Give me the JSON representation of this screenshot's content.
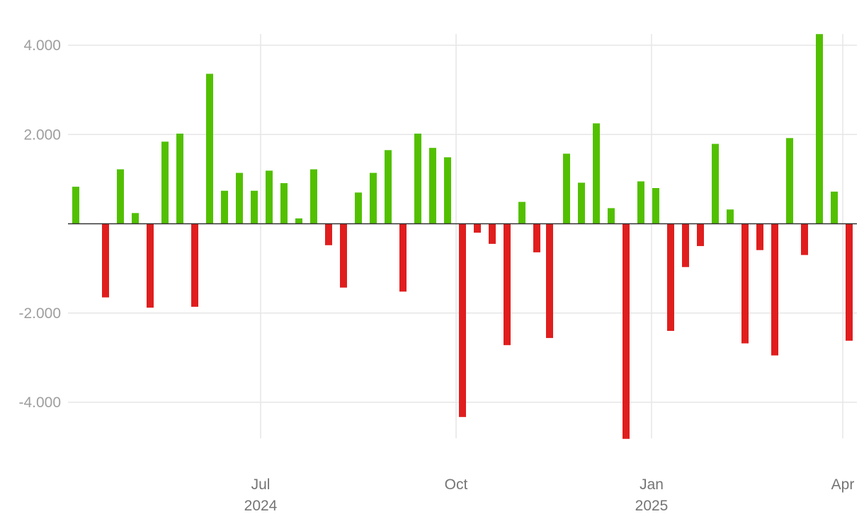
{
  "chart_data": {
    "type": "bar",
    "title": "",
    "xlabel": "",
    "ylabel": "",
    "ylim": [
      -4800,
      4250
    ],
    "y_ticks": [
      4000,
      2000,
      -2000,
      -4000
    ],
    "y_tick_labels": [
      "4.000",
      "2.000",
      "-2.000",
      "-4.000"
    ],
    "x_ticks": [
      {
        "date": "2024-07-01",
        "label": "Jul",
        "sublabel": "2024"
      },
      {
        "date": "2024-10-01",
        "label": "Oct",
        "sublabel": ""
      },
      {
        "date": "2025-01-01",
        "label": "Jan",
        "sublabel": "2025"
      },
      {
        "date": "2025-04-01",
        "label": "Apr",
        "sublabel": ""
      }
    ],
    "grid": true,
    "colors": {
      "positive": "#52c000",
      "negative": "#e01e1e",
      "grid": "#e6e6e6",
      "zero_line": "#333333"
    },
    "dates": [
      "2024-04-05",
      "2024-04-19",
      "2024-04-26",
      "2024-05-03",
      "2024-05-10",
      "2024-05-17",
      "2024-05-24",
      "2024-05-31",
      "2024-06-07",
      "2024-06-14",
      "2024-06-21",
      "2024-06-28",
      "2024-07-05",
      "2024-07-12",
      "2024-07-19",
      "2024-07-26",
      "2024-08-02",
      "2024-08-09",
      "2024-08-16",
      "2024-08-23",
      "2024-08-30",
      "2024-09-06",
      "2024-09-13",
      "2024-09-20",
      "2024-09-27",
      "2024-10-04",
      "2024-10-11",
      "2024-10-18",
      "2024-10-25",
      "2024-11-01",
      "2024-11-08",
      "2024-11-14",
      "2024-11-22",
      "2024-11-29",
      "2024-12-06",
      "2024-12-13",
      "2024-12-20",
      "2024-12-27",
      "2025-01-03",
      "2025-01-10",
      "2025-01-17",
      "2025-01-24",
      "2025-01-31",
      "2025-02-07",
      "2025-02-14",
      "2025-02-21",
      "2025-02-28",
      "2025-03-07",
      "2025-03-14",
      "2025-03-21",
      "2025-03-28",
      "2025-04-04"
    ],
    "values": [
      830,
      -1650,
      1220,
      240,
      -1880,
      1840,
      2020,
      -1860,
      3360,
      740,
      1140,
      740,
      1190,
      910,
      120,
      1220,
      -480,
      -1430,
      700,
      1140,
      1650,
      -1520,
      2020,
      1700,
      1490,
      -4330,
      -200,
      -450,
      -2720,
      490,
      -640,
      -2560,
      1570,
      920,
      2250,
      350,
      -4820,
      950,
      800,
      -2400,
      -970,
      -500,
      1790,
      320,
      -2680,
      -590,
      -2950,
      1920,
      -700,
      4250,
      720,
      -2620
    ]
  }
}
